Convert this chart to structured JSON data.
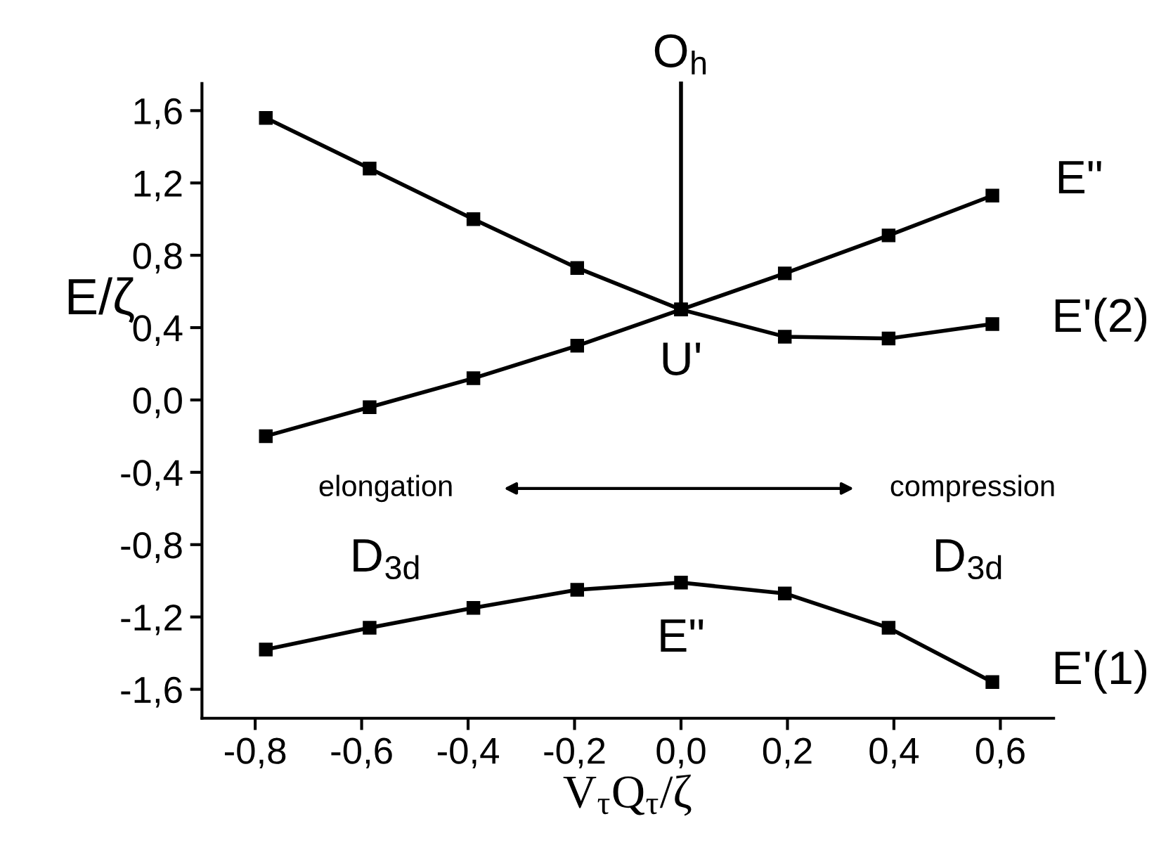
{
  "chart_data": {
    "type": "line",
    "xlabel": "V$_{τ}$Q$_{τ}$/ζ",
    "ylabel": "E/ζ",
    "x": [
      -0.78,
      -0.585,
      -0.39,
      -0.195,
      0,
      0.195,
      0.39,
      0.585
    ],
    "series": [
      {
        "color": "#000000",
        "values": [
          1.56,
          1.28,
          1.0,
          0.73,
          0.5,
          0.35,
          0.34,
          0.42
        ]
      },
      {
        "color": "#000000",
        "values": [
          -0.2,
          -0.04,
          0.12,
          0.3,
          0.5,
          0.7,
          0.91,
          1.13
        ]
      },
      {
        "color": "#000000",
        "values": [
          -1.38,
          -1.26,
          -1.15,
          -1.05,
          -1.01,
          -1.07,
          -1.26,
          -1.56
        ]
      },
      {
        "color": "#000000",
        "x": [
          0,
          0
        ],
        "values": [
          0.5,
          1.75
        ],
        "marker": "none"
      }
    ],
    "marker": "square",
    "line_style": "solid",
    "grid": false,
    "legend": false,
    "xlim": [
      -0.9,
      0.7
    ],
    "ylim": [
      -1.76,
      1.75
    ],
    "xticks": [
      {
        "value": -0.8,
        "label": "-0,8"
      },
      {
        "value": -0.6,
        "label": "-0,6"
      },
      {
        "value": -0.4,
        "label": "-0,4"
      },
      {
        "value": -0.2,
        "label": "-0,2"
      },
      {
        "value": 0,
        "label": "0,0"
      },
      {
        "value": 0.2,
        "label": "0,2"
      },
      {
        "value": 0.4,
        "label": "0,4"
      },
      {
        "value": 0.6,
        "label": "0,6"
      }
    ],
    "yticks": [
      {
        "value": -1.6,
        "label": "-1,6"
      },
      {
        "value": -1.2,
        "label": "-1,2"
      },
      {
        "value": -0.8,
        "label": "-0,8"
      },
      {
        "value": -0.4,
        "label": "-0,4"
      },
      {
        "value": 0,
        "label": "0,0"
      },
      {
        "value": 0.4,
        "label": "0,4"
      },
      {
        "value": 0.8,
        "label": "0,8"
      },
      {
        "value": 1.2,
        "label": "1,2"
      },
      {
        "value": 1.6,
        "label": "1,6"
      }
    ],
    "annotations": [
      "elongation",
      "compression",
      "O$_{h}$",
      "U'",
      "E\"",
      "E'(2)",
      "D$_{3d}$",
      "D$_{3d}$",
      "E\"",
      "E'(1)"
    ]
  }
}
